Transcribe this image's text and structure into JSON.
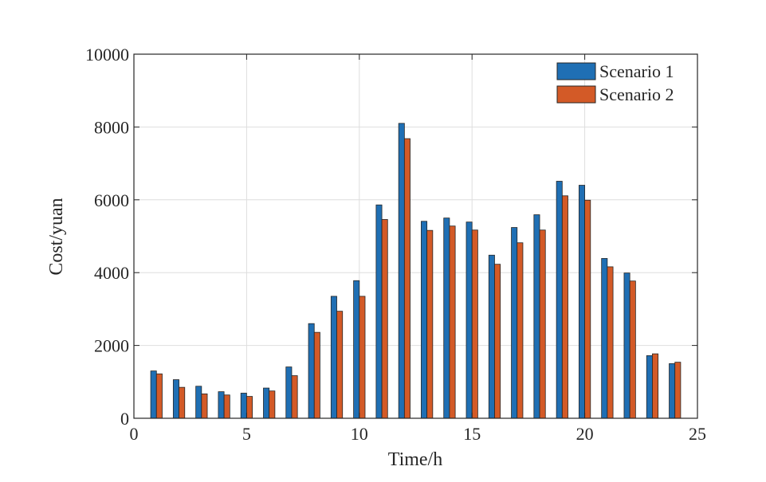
{
  "chart_data": {
    "type": "bar",
    "title": "",
    "xlabel": "Time/h",
    "ylabel": "Cost/yuan",
    "xlim": [
      0,
      25
    ],
    "ylim": [
      0,
      10000
    ],
    "xticks": [
      0,
      5,
      10,
      15,
      20,
      25
    ],
    "yticks": [
      0,
      2000,
      4000,
      6000,
      8000,
      10000
    ],
    "grid": true,
    "legend_position": "top-right",
    "x": [
      1,
      2,
      3,
      4,
      5,
      6,
      7,
      8,
      9,
      10,
      11,
      12,
      13,
      14,
      15,
      16,
      17,
      18,
      19,
      20,
      21,
      22,
      23,
      24
    ],
    "series": [
      {
        "name": "Scenario 1",
        "color": "#1f6fb4",
        "values": [
          1300,
          1060,
          880,
          730,
          690,
          830,
          1410,
          2600,
          3350,
          3780,
          5860,
          8100,
          5410,
          5500,
          5390,
          4480,
          5240,
          5590,
          6510,
          6400,
          4390,
          3990,
          1720,
          1500
        ]
      },
      {
        "name": "Scenario 2",
        "color": "#d35a27",
        "values": [
          1220,
          850,
          670,
          640,
          600,
          750,
          1170,
          2360,
          2940,
          3350,
          5460,
          7680,
          5160,
          5280,
          5170,
          4230,
          4820,
          5170,
          6110,
          5990,
          4160,
          3770,
          1770,
          1540
        ]
      }
    ]
  }
}
